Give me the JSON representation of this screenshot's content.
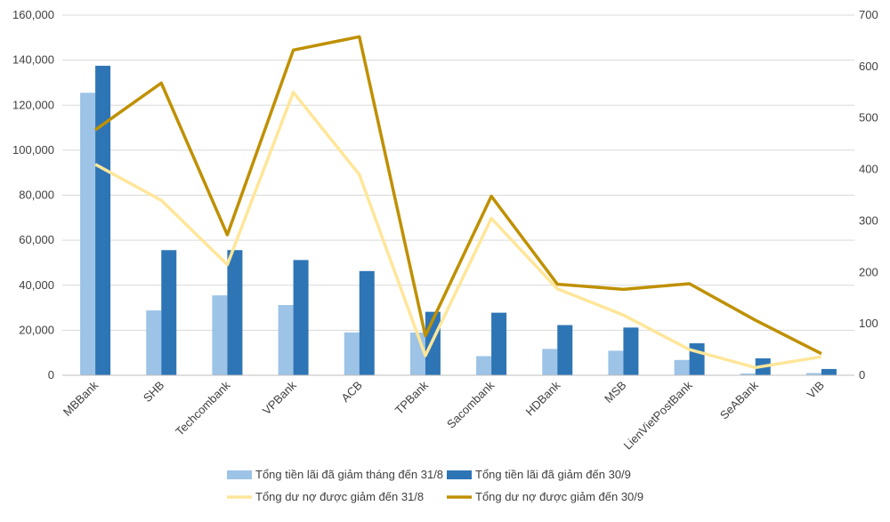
{
  "chart_data": {
    "type": "bar",
    "categories": [
      "MBBank",
      "SHB",
      "Techcombank",
      "VPBank",
      "ACB",
      "TPBank",
      "Sacombank",
      "HDBank",
      "MSB",
      "LienVietPostBank",
      "SeABank",
      "VIB"
    ],
    "y_left": {
      "ylim": [
        0,
        160000
      ],
      "ticks": [
        "0",
        "20,000",
        "40,000",
        "60,000",
        "80,000",
        "100,000",
        "120,000",
        "140,000",
        "160,000"
      ]
    },
    "y_right": {
      "ylim": [
        0,
        700
      ],
      "ticks": [
        "0",
        "100",
        "200",
        "300",
        "400",
        "500",
        "600",
        "700"
      ]
    },
    "series": [
      {
        "name": "Tổng tiền lãi đã giảm tháng đến 31/8",
        "kind": "bar",
        "axis": "left",
        "color": "#9DC3E6",
        "values": [
          125500,
          28800,
          35500,
          31200,
          19000,
          19000,
          8500,
          11700,
          10900,
          6800,
          800,
          1000
        ]
      },
      {
        "name": "Tổng tiền lãi đã giảm đến 30/9",
        "kind": "bar",
        "axis": "left",
        "color": "#2E75B6",
        "values": [
          137500,
          55600,
          55600,
          51200,
          46300,
          28200,
          27800,
          22300,
          21200,
          14200,
          7500,
          2800
        ]
      },
      {
        "name": "Tổng dư nợ được giảm đến 31/8",
        "kind": "line",
        "axis": "right",
        "color": "#FFE699",
        "values": [
          410,
          340,
          215,
          550,
          390,
          38,
          305,
          168,
          117,
          50,
          15,
          36
        ]
      },
      {
        "name": "Tổng dư nợ được giảm đến 30/9",
        "kind": "line",
        "axis": "right",
        "color": "#BF9000",
        "values": [
          477,
          568,
          273,
          632,
          658,
          77,
          348,
          177,
          167,
          178,
          107,
          42
        ]
      }
    ],
    "grid": true,
    "legend_position": "bottom"
  }
}
